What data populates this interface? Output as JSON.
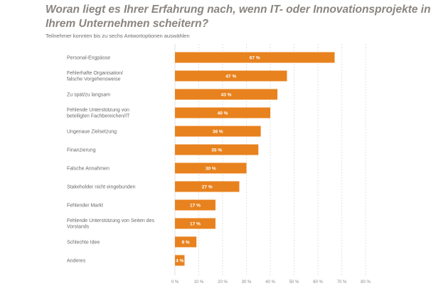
{
  "header": {
    "title": "Woran liegt es Ihrer Erfahrung nach, wenn IT- oder Innovationsprojekte in Ihrem Unternehmen scheitern?",
    "subtitle": "Teilnehmer konnten bis zu sechs Antwortoptionen auswählen"
  },
  "chart_data": {
    "type": "bar",
    "orientation": "horizontal",
    "title": "Woran liegt es Ihrer Erfahrung nach, wenn IT- oder Innovationsprojekte in Ihrem Unternehmen scheitern?",
    "subtitle": "Teilnehmer konnten bis zu sechs Antwortoptionen auswählen",
    "categories": [
      [
        "Personal-Engpässe"
      ],
      [
        "Fehlerhafte Organisation/",
        "falsche Vorgehensweise"
      ],
      [
        "Zu spät/zu langsam"
      ],
      [
        "Fehlende Unterstützung von",
        "beteiligten Fachbereichen/IT"
      ],
      [
        "Ungenaue Zielsetzung"
      ],
      [
        "Finanzierung"
      ],
      [
        "Falsche Annahmen"
      ],
      [
        "Stakeholder nicht eingebunden"
      ],
      [
        "Fehlender Markt"
      ],
      [
        "Fehlende Unterstützung von Seiten des",
        "Vorstands"
      ],
      [
        "Schlechte Idee"
      ],
      [
        "Anderes"
      ]
    ],
    "values": [
      67,
      47,
      43,
      40,
      36,
      35,
      30,
      27,
      17,
      17,
      9,
      4
    ],
    "value_labels": [
      "67 %",
      "47 %",
      "43 %",
      "40 %",
      "36 %",
      "35 %",
      "30 %",
      "27 %",
      "17 %",
      "17 %",
      "9 %",
      "4 %"
    ],
    "xlim": [
      0,
      80
    ],
    "xticks": [
      0,
      10,
      20,
      30,
      40,
      50,
      60,
      70,
      80
    ],
    "xtick_labels": [
      "0 %",
      "10 %",
      "20 %",
      "30 %",
      "40 %",
      "50 %",
      "60 %",
      "70 %",
      "80 %"
    ],
    "grid": "vertical-dashed",
    "bar_color": "#e8821e",
    "grid_color": "#cfcfcf"
  }
}
